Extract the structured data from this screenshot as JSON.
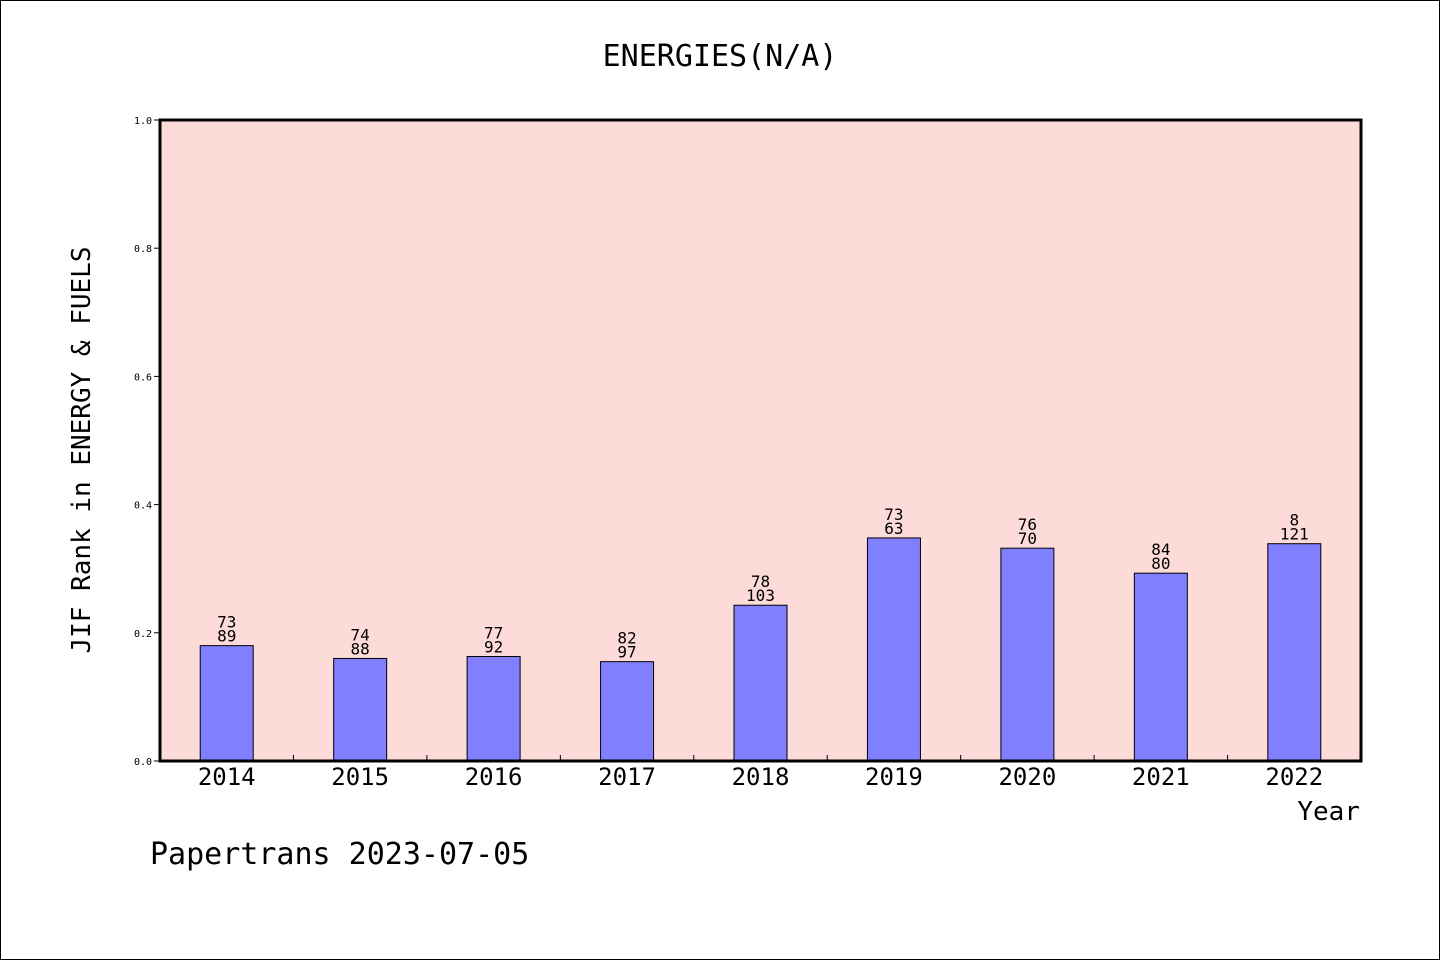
{
  "chart_data": {
    "type": "bar",
    "title": "ENERGIES(N/A)",
    "xlabel": "Year",
    "ylabel": "JIF Rank in ENERGY & FUELS",
    "ylim": [
      0,
      1.0
    ],
    "yticks": [
      "0.0",
      "0.2",
      "0.4",
      "0.6",
      "0.8",
      "1.0"
    ],
    "categories": [
      "2014",
      "2015",
      "2016",
      "2017",
      "2018",
      "2019",
      "2020",
      "2021",
      "2022"
    ],
    "values": [
      0.18,
      0.16,
      0.163,
      0.155,
      0.243,
      0.348,
      0.332,
      0.293,
      0.339
    ],
    "label_top": [
      "73",
      "74",
      "77",
      "82",
      "78",
      "73",
      "76",
      "84",
      "8"
    ],
    "label_bottom": [
      "89",
      "88",
      "92",
      "97",
      "103",
      "63",
      "70",
      "80",
      "121"
    ],
    "grid": false,
    "colors": {
      "plot_background": "#fddbd8",
      "bar_fill": "#8080ff",
      "bar_edge": "#000000"
    }
  },
  "footer": "Papertrans 2023-07-05"
}
